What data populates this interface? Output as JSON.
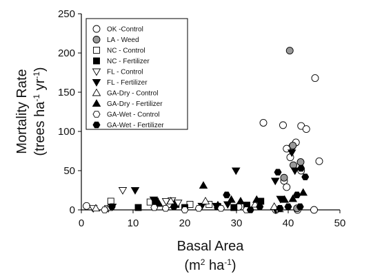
{
  "chart_data": {
    "type": "scatter",
    "xlabel": {
      "line1": "Basal Area",
      "line2": [
        "(m",
        "2",
        " ha",
        "-1",
        ")"
      ]
    },
    "ylabel": {
      "line1": "Mortality Rate",
      "line2": [
        "(trees ha",
        "-1",
        " yr",
        "-1",
        ")"
      ]
    },
    "xlim": [
      0,
      50
    ],
    "ylim": [
      0,
      250
    ],
    "xticks": [
      0,
      10,
      20,
      30,
      40,
      50
    ],
    "yticks": [
      0,
      50,
      100,
      150,
      200,
      250
    ],
    "legend": "upper left",
    "series": [
      {
        "name": "OK -Control",
        "marker": "circle",
        "color": "white",
        "x": [
          1,
          35.2,
          39,
          45.2,
          46,
          45,
          42.5,
          42.5,
          43.5,
          41.5,
          40.8,
          39.7,
          40.4,
          39.2,
          39.7,
          41.8,
          37.6,
          30.4
        ],
        "values": [
          5,
          111,
          108,
          168,
          62,
          0,
          50,
          107,
          103,
          86,
          81,
          78,
          67,
          37,
          29,
          0,
          0,
          4
        ]
      },
      {
        "name": "LA - Weed",
        "marker": "circle",
        "color": "#999999",
        "x": [
          40.3,
          41,
          40.9,
          39.2,
          41.7,
          42.4
        ],
        "values": [
          203,
          57,
          82,
          41,
          2,
          61
        ]
      },
      {
        "name": "NC - Control",
        "marker": "square",
        "color": "white",
        "x": [
          5.7,
          13.3,
          17,
          21,
          24.7
        ],
        "values": [
          11,
          10,
          7,
          7,
          7
        ]
      },
      {
        "name": "NC - Fertilizer",
        "marker": "square",
        "color": "black",
        "x": [
          14.3,
          18.3,
          20,
          32,
          34.7,
          26.4,
          11,
          29.5
        ],
        "values": [
          11,
          7,
          3,
          6,
          11,
          4,
          3,
          3
        ]
      },
      {
        "name": "FL - Control",
        "marker": "triangle-down",
        "color": "white",
        "x": [
          8,
          16.4,
          17.5,
          18.7,
          2.3,
          5.2
        ],
        "values": [
          25,
          11,
          12,
          9,
          2,
          2
        ]
      },
      {
        "name": "FL - Fertilizer",
        "marker": "triangle-down",
        "color": "black",
        "x": [
          29.9,
          37.5,
          40.7,
          41.3,
          10.4,
          14,
          6,
          23.3,
          26.1,
          28.3,
          38.5,
          37.6
        ],
        "values": [
          50,
          37,
          73,
          50,
          25,
          13,
          4,
          5,
          5,
          7,
          14,
          0
        ]
      },
      {
        "name": "GA-Dry - Control",
        "marker": "triangle-up",
        "color": "white",
        "x": [
          24,
          17.3,
          33.6,
          37.3,
          38.3,
          2.8
        ],
        "values": [
          11,
          11,
          7,
          4,
          1,
          2
        ]
      },
      {
        "name": "GA-Dry - Fertilizer",
        "marker": "triangle-up",
        "color": "black",
        "x": [
          23.6,
          30.8,
          33.9,
          39.3,
          40.9,
          42.9,
          29,
          26.4,
          15
        ],
        "values": [
          31,
          11,
          13,
          13,
          14,
          22,
          13,
          6,
          8
        ]
      },
      {
        "name": "GA-Wet - Control",
        "marker": "hexagon",
        "color": "white",
        "x": [
          5.6,
          14.1,
          16.3,
          20,
          22.7,
          27,
          31.9,
          4.5
        ],
        "values": [
          3,
          3,
          2,
          0,
          2,
          2,
          0,
          0
        ]
      },
      {
        "name": "GA-Wet - Fertilizer",
        "marker": "hexagon",
        "color": "black",
        "x": [
          28.1,
          42.5,
          43.3,
          38,
          41.7,
          38.4,
          34.5,
          32.7,
          5.9,
          17.9,
          40,
          42.3
        ],
        "values": [
          19,
          53,
          42,
          48,
          19,
          2,
          4,
          0,
          4,
          4,
          4,
          4
        ]
      }
    ]
  }
}
